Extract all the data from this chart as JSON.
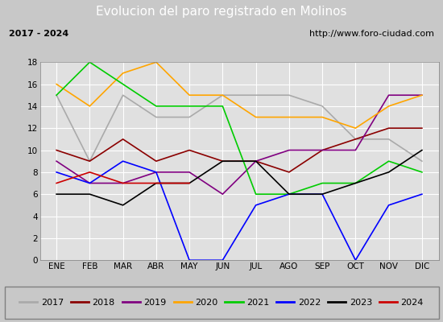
{
  "title": "Evolucion del paro registrado en Molinos",
  "subtitle_left": "2017 - 2024",
  "subtitle_right": "http://www.foro-ciudad.com",
  "months": [
    "ENE",
    "FEB",
    "MAR",
    "ABR",
    "MAY",
    "JUN",
    "JUL",
    "AGO",
    "SEP",
    "OCT",
    "NOV",
    "DIC"
  ],
  "ylim": [
    0,
    18
  ],
  "yticks": [
    0,
    2,
    4,
    6,
    8,
    10,
    12,
    14,
    16,
    18
  ],
  "series": {
    "2017": {
      "color": "#aaaaaa",
      "values": [
        15,
        9,
        15,
        13,
        13,
        15,
        15,
        15,
        14,
        11,
        11,
        9
      ]
    },
    "2018": {
      "color": "#8b0000",
      "values": [
        10,
        9,
        11,
        9,
        10,
        9,
        9,
        8,
        10,
        11,
        12,
        12
      ]
    },
    "2019": {
      "color": "#800080",
      "values": [
        9,
        7,
        7,
        8,
        8,
        6,
        9,
        10,
        10,
        10,
        15,
        15
      ]
    },
    "2020": {
      "color": "#ffa500",
      "values": [
        16,
        14,
        17,
        18,
        15,
        15,
        13,
        13,
        13,
        12,
        14,
        15
      ]
    },
    "2021": {
      "color": "#00cc00",
      "values": [
        15,
        18,
        16,
        14,
        14,
        14,
        6,
        6,
        7,
        7,
        9,
        8
      ]
    },
    "2022": {
      "color": "#0000ff",
      "values": [
        8,
        7,
        9,
        8,
        0,
        0,
        5,
        6,
        6,
        0,
        5,
        6
      ]
    },
    "2023": {
      "color": "#000000",
      "values": [
        6,
        6,
        5,
        7,
        7,
        9,
        9,
        6,
        6,
        7,
        8,
        10
      ]
    },
    "2024": {
      "color": "#cc0000",
      "values": [
        7,
        8,
        7,
        7,
        7,
        null,
        null,
        null,
        null,
        null,
        null,
        null
      ]
    }
  },
  "title_bg": "#4472c4",
  "title_color": "white",
  "title_fontsize": 11,
  "subtitle_fontsize": 8,
  "tick_fontsize": 7.5,
  "legend_fontsize": 8,
  "plot_bg": "#e0e0e0",
  "grid_color": "white",
  "fig_bg": "#c8c8c8",
  "subtitle_bg": "#f0f0f0",
  "legend_bg": "white"
}
